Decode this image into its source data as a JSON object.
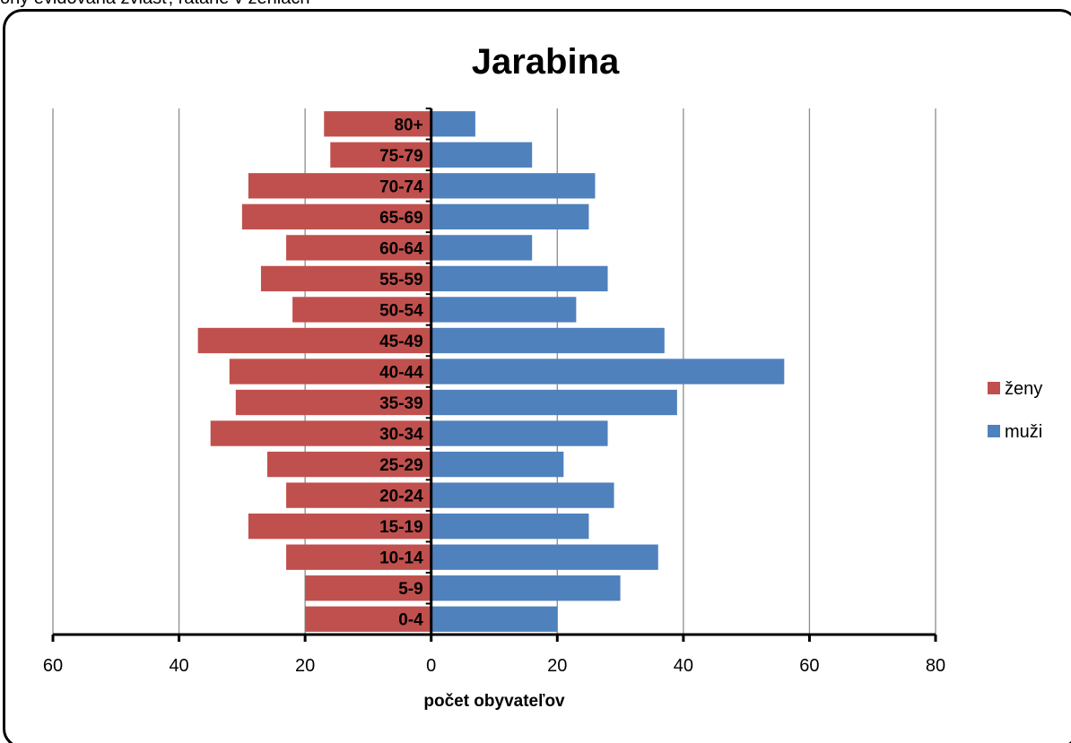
{
  "top_partial_text": "ony evidovaná zvlášť, rátané v zeniach",
  "chart_data": {
    "type": "bar",
    "orientation": "horizontal",
    "title": "Jarabina",
    "xlabel": "počet obyvateľov",
    "ylabel": "",
    "xlim": [
      -60,
      80
    ],
    "x_ticks": [
      -60,
      -40,
      -20,
      0,
      20,
      40,
      60,
      80
    ],
    "x_tick_labels": [
      "60",
      "40",
      "20",
      "0",
      "20",
      "40",
      "60",
      "80"
    ],
    "categories": [
      "0-4",
      "5-9",
      "10-14",
      "15-19",
      "20-24",
      "25-29",
      "30-34",
      "35-39",
      "40-44",
      "45-49",
      "50-54",
      "55-59",
      "60-64",
      "65-69",
      "70-74",
      "75-79",
      "80+"
    ],
    "series": [
      {
        "name": "ženy",
        "color": "#c0504d",
        "values": [
          -20,
          -20,
          -23,
          -29,
          -23,
          -26,
          -35,
          -31,
          -32,
          -37,
          -22,
          -27,
          -23,
          -30,
          -29,
          -16,
          -17
        ]
      },
      {
        "name": "muži",
        "color": "#4f81bd",
        "values": [
          20,
          30,
          36,
          25,
          29,
          21,
          28,
          39,
          56,
          37,
          23,
          28,
          16,
          25,
          26,
          16,
          7
        ]
      }
    ],
    "grid": true,
    "legend_position": "right"
  }
}
